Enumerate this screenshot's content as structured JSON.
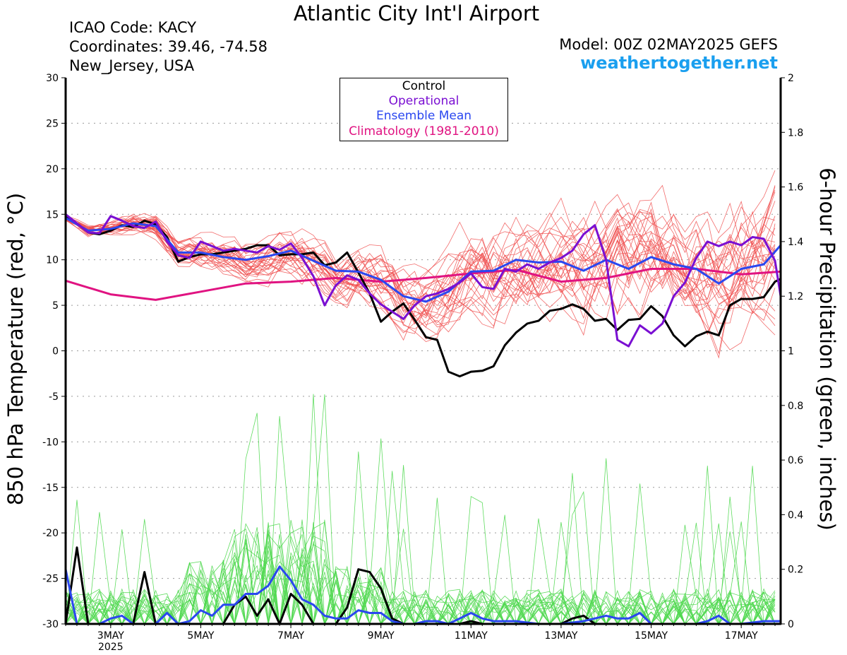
{
  "header": {
    "title": "Atlantic City Int'l Airport",
    "icao": "ICAO Code: KACY",
    "coords": "Coordinates: 39.46, -74.58",
    "region": "New_Jersey, USA",
    "model": "Model: 00Z 02MAY2025 GEFS",
    "site": "weathertogether.net"
  },
  "colors": {
    "control": "#000000",
    "operational": "#7a0fd2",
    "mean": "#2a47f0",
    "climatology": "#e01381",
    "member_temp": "#f05050",
    "member_precip": "#4fd84f",
    "site": "#1a9fef"
  },
  "chart_data": {
    "type": "line",
    "ylabel": "850 hPa Temperature (red, °C)",
    "y2label": "6-hour Precipitation (green, inches)",
    "ylim": [
      -30,
      30
    ],
    "y2lim": [
      0,
      2
    ],
    "xlim": [
      2.0,
      17.875
    ],
    "x_ticks": [
      {
        "x": 3,
        "label": "3MAY",
        "sub": "2025"
      },
      {
        "x": 5,
        "label": "5MAY",
        "sub": ""
      },
      {
        "x": 7,
        "label": "7MAY",
        "sub": ""
      },
      {
        "x": 9,
        "label": "9MAY",
        "sub": ""
      },
      {
        "x": 11,
        "label": "11MAY",
        "sub": ""
      },
      {
        "x": 13,
        "label": "13MAY",
        "sub": ""
      },
      {
        "x": 15,
        "label": "15MAY",
        "sub": ""
      },
      {
        "x": 17,
        "label": "17MAY",
        "sub": ""
      }
    ],
    "y_ticks": [
      30,
      25,
      20,
      15,
      10,
      5,
      0,
      -5,
      -10,
      -15,
      -20,
      -25,
      -30
    ],
    "y2_ticks": [
      "2",
      "1.8",
      "1.6",
      "1.4",
      "1.2",
      "1",
      "0.8",
      "0.6",
      "0.4",
      "0.2",
      "0"
    ],
    "grid": true,
    "legend": [
      "Control",
      "Operational",
      "Ensemble Mean",
      "Climatology (1981-2010)"
    ],
    "legend_placement": "top-center",
    "series": [
      {
        "name": "Control",
        "axis": "temp",
        "color": "#000000",
        "x": [
          2.0,
          2.25,
          2.5,
          2.75,
          3.0,
          3.25,
          3.5,
          3.75,
          4.0,
          4.25,
          4.5,
          4.75,
          5.0,
          5.25,
          5.5,
          5.75,
          6.0,
          6.25,
          6.5,
          6.75,
          7.0,
          7.25,
          7.5,
          7.75,
          8.0,
          8.25,
          8.5,
          8.75,
          9.0,
          9.25,
          9.5,
          9.75,
          10.0,
          10.25,
          10.5,
          10.75,
          11.0,
          11.25,
          11.5,
          11.75,
          12.0,
          12.25,
          12.5,
          12.75,
          13.0,
          13.25,
          13.5,
          13.75,
          14.0,
          14.25,
          14.5,
          14.75,
          15.0,
          15.25,
          15.5,
          15.75,
          16.0,
          16.25,
          16.5,
          16.75,
          17.0,
          17.25,
          17.5,
          17.75,
          17.875
        ],
        "values": [
          14.8,
          14.0,
          13.0,
          12.8,
          13.2,
          13.8,
          13.6,
          14.3,
          13.9,
          12.5,
          9.8,
          10.3,
          10.6,
          10.6,
          10.8,
          11.0,
          11.2,
          11.6,
          11.6,
          10.5,
          10.6,
          10.6,
          10.8,
          9.4,
          9.7,
          10.8,
          8.6,
          6.3,
          3.2,
          4.3,
          5.2,
          3.4,
          1.5,
          1.2,
          -2.3,
          -2.8,
          -2.3,
          -2.2,
          -1.7,
          0.6,
          2.0,
          3.0,
          3.3,
          4.4,
          4.6,
          5.1,
          4.6,
          3.3,
          3.5,
          2.3,
          3.4,
          3.5,
          4.9,
          3.8,
          1.7,
          0.5,
          1.6,
          2.1,
          1.7,
          5.0,
          5.7,
          5.7,
          5.9,
          7.6,
          7.9
        ]
      },
      {
        "name": "Operational",
        "axis": "temp",
        "color": "#7a0fd2",
        "x": [
          2.0,
          2.25,
          2.5,
          2.75,
          3.0,
          3.25,
          3.5,
          3.75,
          4.0,
          4.25,
          4.5,
          4.75,
          5.0,
          5.25,
          5.5,
          5.75,
          6.0,
          6.25,
          6.5,
          6.75,
          7.0,
          7.25,
          7.5,
          7.75,
          8.0,
          8.25,
          8.5,
          8.75,
          9.0,
          9.25,
          9.5,
          9.75,
          10.0,
          10.25,
          10.5,
          10.75,
          11.0,
          11.25,
          11.5,
          11.75,
          12.0,
          12.25,
          12.5,
          12.75,
          13.0,
          13.25,
          13.5,
          13.75,
          14.0,
          14.25,
          14.5,
          14.75,
          15.0,
          15.25,
          15.5,
          15.75,
          16.0,
          16.25,
          16.5,
          16.75,
          17.0,
          17.25,
          17.5,
          17.75,
          17.875
        ],
        "values": [
          15.0,
          14.0,
          13.0,
          12.9,
          14.8,
          14.3,
          13.7,
          13.5,
          14.2,
          12.0,
          10.5,
          10.2,
          12.0,
          11.5,
          11.0,
          11.2,
          11.0,
          10.8,
          11.5,
          11.1,
          11.8,
          10.2,
          8.2,
          5.0,
          7.2,
          8.3,
          7.8,
          6.3,
          5.1,
          4.3,
          3.5,
          5.0,
          6.0,
          6.3,
          6.8,
          7.5,
          8.5,
          7.0,
          6.8,
          9.0,
          8.7,
          9.5,
          9.0,
          9.7,
          10.2,
          11.0,
          12.8,
          13.8,
          10.0,
          1.2,
          0.5,
          2.8,
          1.9,
          3.0,
          6.0,
          7.5,
          10.2,
          12.0,
          11.5,
          12.0,
          11.6,
          12.5,
          12.3,
          9.9,
          6.0
        ]
      },
      {
        "name": "Ensemble Mean",
        "axis": "temp",
        "color": "#2a47f0",
        "x": [
          2.0,
          2.5,
          3.0,
          3.5,
          4.0,
          4.5,
          5.0,
          5.5,
          6.0,
          6.5,
          7.0,
          7.5,
          8.0,
          8.5,
          9.0,
          9.5,
          10.0,
          10.5,
          11.0,
          11.5,
          12.0,
          12.5,
          13.0,
          13.5,
          14.0,
          14.5,
          15.0,
          15.5,
          16.0,
          16.5,
          17.0,
          17.5,
          17.875
        ],
        "values": [
          14.6,
          13.2,
          13.4,
          14.0,
          13.7,
          10.8,
          10.8,
          10.3,
          10.0,
          10.4,
          11.0,
          9.9,
          8.8,
          8.7,
          7.8,
          6.0,
          5.4,
          6.5,
          8.7,
          8.8,
          10.0,
          9.7,
          9.8,
          8.8,
          10.0,
          9.0,
          10.3,
          9.5,
          9.0,
          7.4,
          9.0,
          9.5,
          11.6
        ]
      },
      {
        "name": "Climatology (1981-2010)",
        "axis": "temp",
        "color": "#e01381",
        "x": [
          2.0,
          3.0,
          4.0,
          5.0,
          6.0,
          7.0,
          8.0,
          9.0,
          10.0,
          11.0,
          12.0,
          13.0,
          14.0,
          15.0,
          16.0,
          17.0,
          17.875
        ],
        "values": [
          7.7,
          6.2,
          5.6,
          6.5,
          7.4,
          7.6,
          8.0,
          7.6,
          8.0,
          8.5,
          8.9,
          7.6,
          8.0,
          9.0,
          9.0,
          8.4,
          8.7
        ]
      },
      {
        "name": "Control",
        "axis": "precip",
        "color": "#000000",
        "x": [
          2.0,
          2.25,
          2.5,
          2.75,
          3.0,
          3.25,
          3.5,
          3.75,
          4.0,
          4.25,
          4.5,
          4.75,
          5.0,
          5.25,
          5.5,
          5.75,
          6.0,
          6.25,
          6.5,
          6.75,
          7.0,
          7.25,
          7.5,
          7.75,
          8.0,
          8.25,
          8.5,
          8.75,
          9.0,
          9.25,
          9.5,
          9.75,
          10.0,
          10.25,
          10.5,
          10.75,
          11.0,
          11.25,
          11.5,
          11.75,
          12.0,
          12.5,
          13.0,
          13.25,
          13.5,
          13.75,
          14.0,
          14.5,
          15.0,
          15.5,
          16.0,
          16.5,
          17.0,
          17.5,
          17.875
        ],
        "values": [
          0.0,
          0.28,
          0.0,
          0.0,
          0.0,
          0.0,
          0.0,
          0.19,
          0.0,
          0.0,
          0.0,
          0.0,
          0.0,
          0.0,
          0.0,
          0.07,
          0.1,
          0.03,
          0.09,
          0.0,
          0.11,
          0.07,
          0.0,
          0.0,
          0.0,
          0.06,
          0.2,
          0.19,
          0.13,
          0.02,
          0.0,
          0.0,
          0.0,
          0.0,
          0.0,
          0.0,
          0.01,
          0.0,
          0.0,
          0.0,
          0.0,
          0.0,
          0.0,
          0.02,
          0.03,
          0.0,
          0.0,
          0.0,
          0.0,
          0.0,
          0.0,
          0.0,
          0.0,
          0.0,
          0.0
        ]
      },
      {
        "name": "Ensemble Mean",
        "axis": "precip",
        "color": "#2a47f0",
        "x": [
          2.0,
          2.25,
          2.5,
          2.75,
          3.0,
          3.25,
          3.5,
          3.75,
          4.0,
          4.25,
          4.5,
          4.75,
          5.0,
          5.25,
          5.5,
          5.75,
          6.0,
          6.25,
          6.5,
          6.75,
          7.0,
          7.25,
          7.5,
          7.75,
          8.0,
          8.25,
          8.5,
          8.75,
          9.0,
          9.25,
          9.5,
          9.75,
          10.0,
          10.25,
          10.5,
          10.75,
          11.0,
          11.25,
          11.5,
          11.75,
          12.0,
          12.5,
          13.0,
          13.5,
          14.0,
          14.25,
          14.5,
          14.75,
          15.0,
          15.5,
          16.0,
          16.25,
          16.5,
          16.75,
          17.0,
          17.5,
          17.875
        ],
        "values": [
          0.2,
          0.0,
          0.0,
          0.0,
          0.02,
          0.03,
          0.0,
          0.0,
          0.0,
          0.04,
          0.0,
          0.01,
          0.05,
          0.03,
          0.07,
          0.07,
          0.11,
          0.11,
          0.14,
          0.21,
          0.16,
          0.09,
          0.07,
          0.03,
          0.02,
          0.02,
          0.05,
          0.04,
          0.04,
          0.01,
          0.0,
          0.0,
          0.01,
          0.01,
          0.0,
          0.02,
          0.04,
          0.02,
          0.01,
          0.01,
          0.01,
          0.0,
          0.0,
          0.01,
          0.03,
          0.02,
          0.02,
          0.04,
          0.0,
          0.0,
          0.0,
          0.01,
          0.03,
          0.0,
          0.0,
          0.01,
          0.01
        ]
      }
    ]
  }
}
